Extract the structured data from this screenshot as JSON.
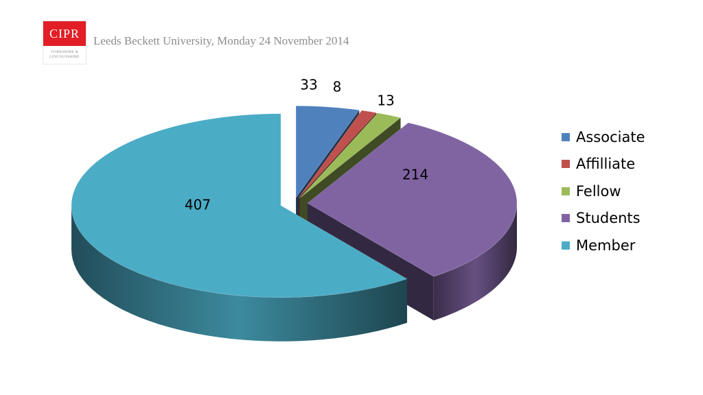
{
  "header": {
    "logo_text": "CIPR",
    "logo_subtext_line1": "YORKSHIRE &",
    "logo_subtext_line2": "LINCOLNSHIRE",
    "logo_color": "#e21f26",
    "event_text": "Leeds Beckett University, Monday 24 November 2014"
  },
  "chart_data": {
    "type": "pie",
    "style": "3d-exploded",
    "title": "",
    "legend_position": "right",
    "slices": [
      {
        "label": "Associate",
        "value": 33,
        "color": "#4f81bd"
      },
      {
        "label": "Affilliate",
        "value": 8,
        "color": "#c0504d"
      },
      {
        "label": "Fellow",
        "value": 13,
        "color": "#9bbb59"
      },
      {
        "label": "Students",
        "value": 214,
        "color": "#8064a2"
      },
      {
        "label": "Member",
        "value": 407,
        "color": "#4bacc6"
      }
    ]
  }
}
